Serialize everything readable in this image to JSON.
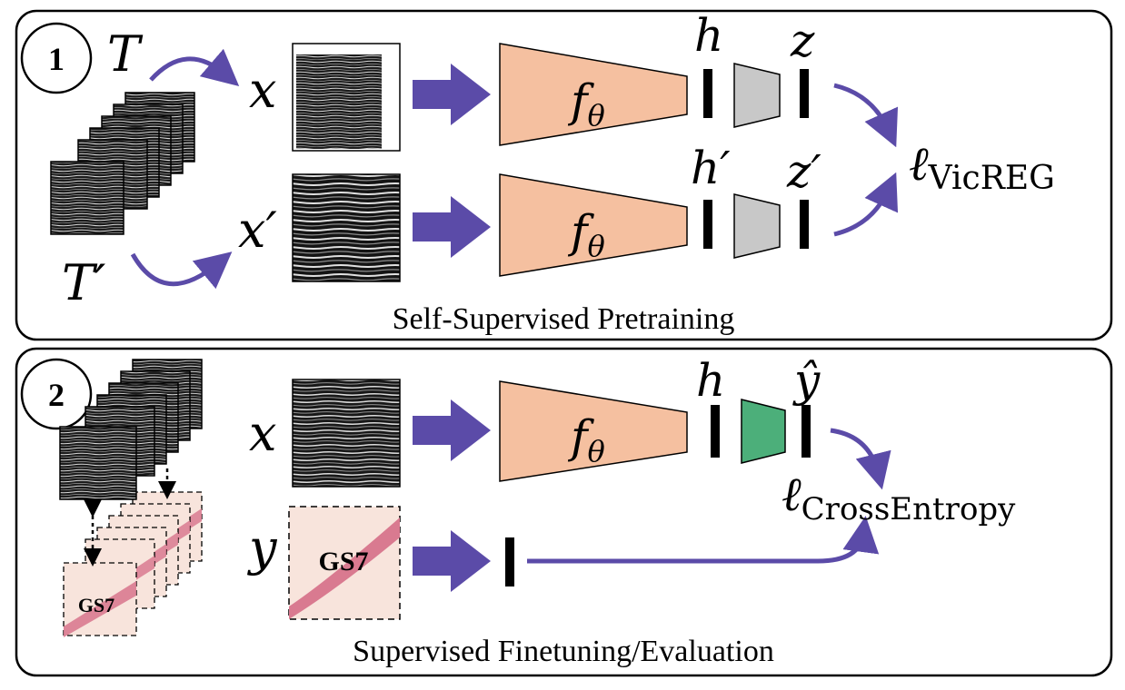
{
  "panel1": {
    "number": "1",
    "caption": "Self-Supervised Pretraining",
    "aug_top": "T",
    "aug_bottom": "T′",
    "input_top": "x",
    "input_bottom": "x′",
    "encoder_label": "f",
    "encoder_sub": "θ",
    "h_top": "h",
    "h_bottom": "h′",
    "z_top": "z",
    "z_bottom": "z′",
    "loss_symbol": "ℓ",
    "loss_sub": "VicREG"
  },
  "panel2": {
    "number": "2",
    "caption": "Supervised Finetuning/Evaluation",
    "input": "x",
    "label": "y",
    "encoder_label": "f",
    "encoder_sub": "θ",
    "h": "h",
    "yhat": "ŷ",
    "loss_symbol": "ℓ",
    "loss_sub": "CrossEntropy",
    "grade_stack": "GS7",
    "grade_main": "GS7"
  },
  "colors": {
    "arrow": "#5b4ba8",
    "encoder": "#f5c0a0",
    "projector": "#c8c8c8",
    "classifier": "#4caf7a",
    "tissue_bg": "#f8e4dc",
    "tissue": "#d97a90"
  }
}
